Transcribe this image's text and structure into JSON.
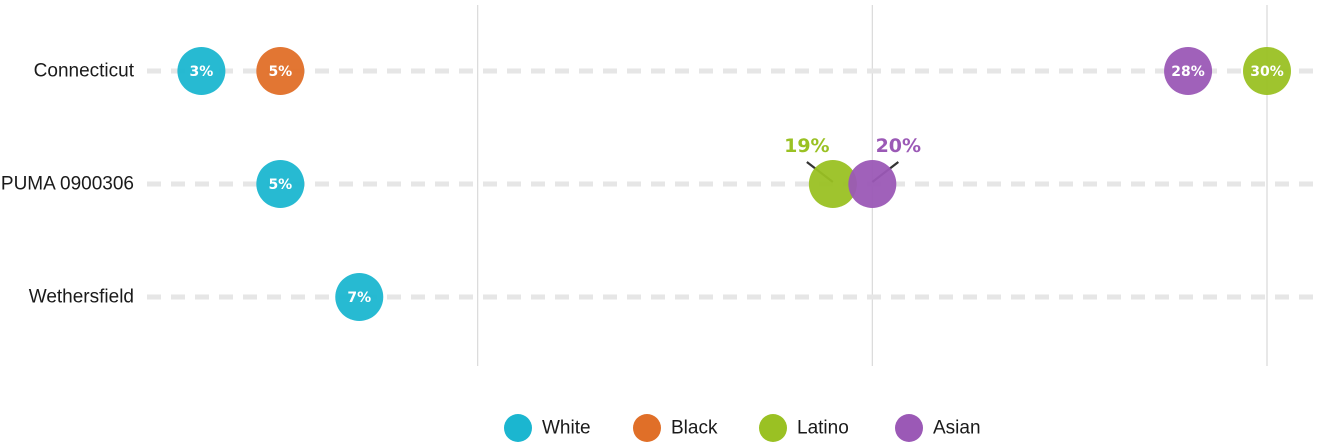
{
  "chart_data": {
    "type": "dot",
    "title": "",
    "xlabel": "",
    "ylabel": "",
    "xlim": [
      0,
      30
    ],
    "grid": {
      "vertical_major": [
        10,
        20,
        30
      ],
      "row_lines": "dashed"
    },
    "legend_position": "bottom",
    "categories": [
      "Connecticut",
      "PUMA 0900306",
      "Wethersfield"
    ],
    "series": [
      {
        "name": "White",
        "color": "#1bb6d0",
        "values": [
          0.03,
          0.05,
          0.07
        ],
        "labels": [
          "3%",
          "5%",
          "7%"
        ]
      },
      {
        "name": "Black",
        "color": "#e06f28",
        "values": [
          0.05,
          null,
          null
        ],
        "labels": [
          "5%",
          "",
          ""
        ]
      },
      {
        "name": "Latino",
        "color": "#9ac123",
        "values": [
          0.3,
          0.19,
          null
        ],
        "labels": [
          "30%",
          "19%",
          ""
        ]
      },
      {
        "name": "Asian",
        "color": "#9b59b6",
        "values": [
          0.28,
          0.2,
          null
        ],
        "labels": [
          "28%",
          "20%",
          ""
        ]
      }
    ]
  }
}
